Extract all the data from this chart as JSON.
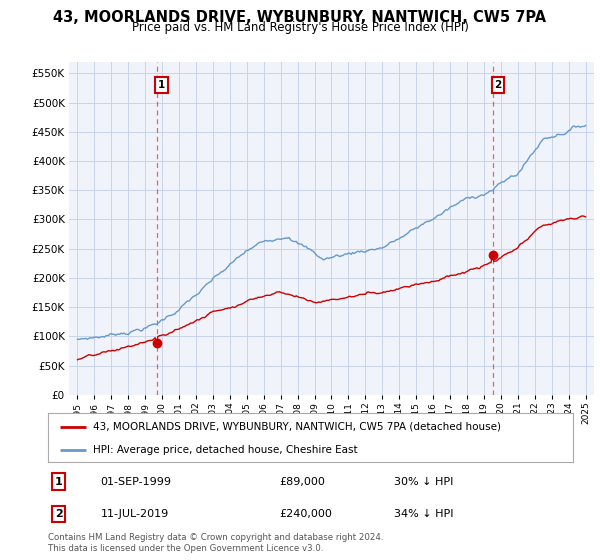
{
  "title": "43, MOORLANDS DRIVE, WYBUNBURY, NANTWICH, CW5 7PA",
  "subtitle": "Price paid vs. HM Land Registry's House Price Index (HPI)",
  "legend_house": "43, MOORLANDS DRIVE, WYBUNBURY, NANTWICH, CW5 7PA (detached house)",
  "legend_hpi": "HPI: Average price, detached house, Cheshire East",
  "footer": "Contains HM Land Registry data © Crown copyright and database right 2024.\nThis data is licensed under the Open Government Licence v3.0.",
  "sale1_date": "01-SEP-1999",
  "sale1_price": "£89,000",
  "sale1_hpi": "30% ↓ HPI",
  "sale2_date": "11-JUL-2019",
  "sale2_price": "£240,000",
  "sale2_hpi": "34% ↓ HPI",
  "house_color": "#cc0000",
  "hpi_color": "#6699cc",
  "sale1_year": 1999.67,
  "sale1_value": 89000,
  "sale2_year": 2019.53,
  "sale2_value": 240000,
  "ylim": [
    0,
    570000
  ],
  "xlim": [
    1994.5,
    2025.5
  ],
  "yticks": [
    0,
    50000,
    100000,
    150000,
    200000,
    250000,
    300000,
    350000,
    400000,
    450000,
    500000,
    550000
  ],
  "xticks": [
    1995,
    1996,
    1997,
    1998,
    1999,
    2000,
    2001,
    2002,
    2003,
    2004,
    2005,
    2006,
    2007,
    2008,
    2009,
    2010,
    2011,
    2012,
    2013,
    2014,
    2015,
    2016,
    2017,
    2018,
    2019,
    2020,
    2021,
    2022,
    2023,
    2024,
    2025
  ],
  "bg_color": "#ffffff",
  "plot_bg_color": "#f0f4fa",
  "grid_color": "#c8d4e8"
}
